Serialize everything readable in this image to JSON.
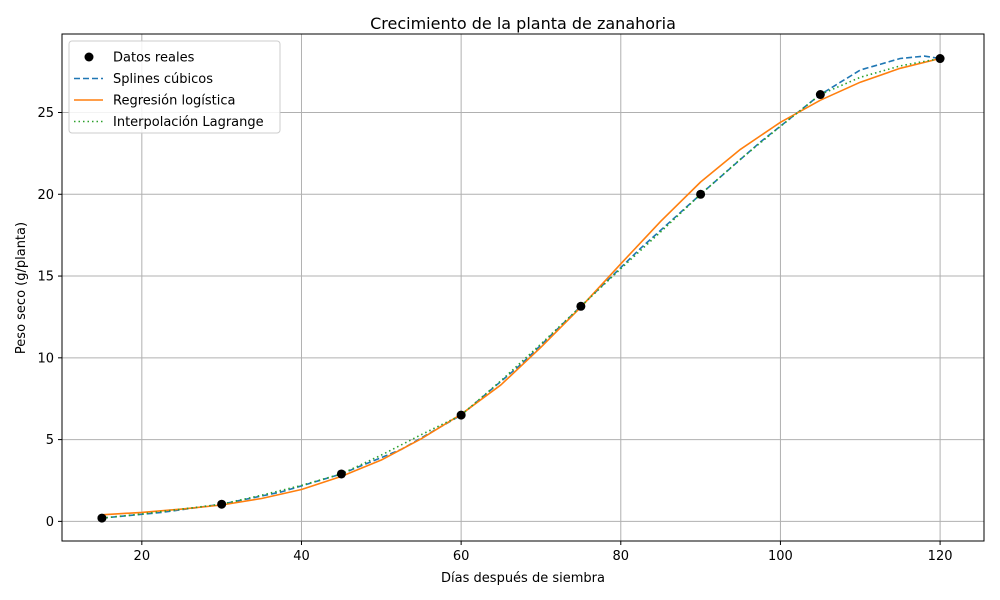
{
  "chart_data": {
    "type": "line",
    "title": "Crecimiento de la planta de zanahoria",
    "xlabel": "Días después de siembra",
    "ylabel": "Peso seco (g/planta)",
    "xlim": [
      10,
      125.5
    ],
    "ylim": [
      -1.2,
      29.8
    ],
    "xticks": [
      20,
      40,
      60,
      80,
      100,
      120
    ],
    "yticks": [
      0,
      5,
      10,
      15,
      20,
      25
    ],
    "grid": true,
    "legend_position": "top-left",
    "series": [
      {
        "name": "Datos reales",
        "style": "markers",
        "color": "#000000",
        "x": [
          15,
          30,
          45,
          60,
          75,
          90,
          105,
          120
        ],
        "y": [
          0.2,
          1.05,
          2.9,
          6.5,
          13.15,
          20.0,
          26.1,
          28.3
        ]
      },
      {
        "name": "Splines cúbicos",
        "style": "dashed",
        "color": "#1f77b4",
        "x": [
          15,
          22.5,
          30,
          37.5,
          45,
          52.5,
          60,
          67.5,
          75,
          82.5,
          90,
          97.5,
          105,
          110,
          115,
          118,
          120
        ],
        "y": [
          0.2,
          0.55,
          1.05,
          1.8,
          2.9,
          4.4,
          6.5,
          9.6,
          13.15,
          16.7,
          20.0,
          23.2,
          26.1,
          27.6,
          28.3,
          28.45,
          28.3
        ]
      },
      {
        "name": "Regresión logística",
        "style": "solid",
        "color": "#ff7f0e",
        "x": [
          15,
          20,
          25,
          30,
          35,
          40,
          45,
          50,
          55,
          60,
          65,
          70,
          75,
          80,
          85,
          90,
          95,
          100,
          105,
          110,
          115,
          120
        ],
        "y": [
          0.4,
          0.55,
          0.75,
          1.0,
          1.4,
          1.95,
          2.75,
          3.75,
          5.05,
          6.55,
          8.35,
          10.65,
          13.1,
          15.75,
          18.35,
          20.75,
          22.75,
          24.4,
          25.75,
          26.85,
          27.7,
          28.3
        ]
      },
      {
        "name": "Interpolación Lagrange",
        "style": "dotted",
        "color": "#2ca02c",
        "x": [
          15,
          20,
          25,
          30,
          35,
          40,
          45,
          50,
          55,
          60,
          65,
          70,
          75,
          80,
          85,
          90,
          95,
          100,
          105,
          110,
          115,
          120
        ],
        "y": [
          0.2,
          0.45,
          0.75,
          1.05,
          1.6,
          2.2,
          2.9,
          4.05,
          5.3,
          6.5,
          8.6,
          10.85,
          13.15,
          15.45,
          17.7,
          20.0,
          22.15,
          24.15,
          26.1,
          27.15,
          27.85,
          28.3
        ]
      }
    ]
  }
}
